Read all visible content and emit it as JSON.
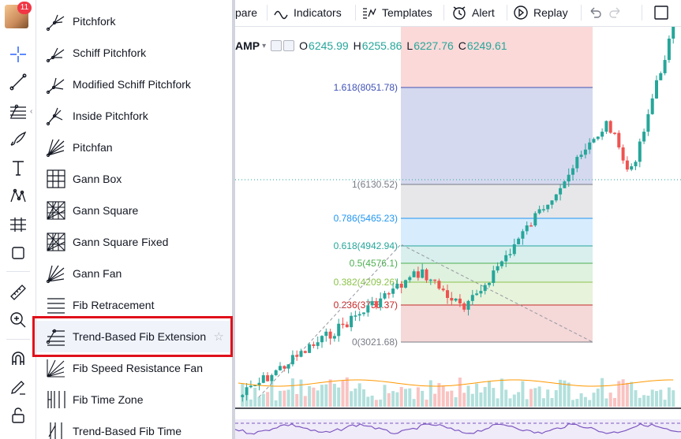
{
  "user": {
    "notification_count": "11"
  },
  "toolbar": {
    "icons": [
      "crosshair-icon",
      "trend-line-icon",
      "fib-tools-icon",
      "brush-icon",
      "text-icon",
      "pattern-icon",
      "prediction-icon",
      "shapes-icon",
      "ruler-icon",
      "zoom-in-icon",
      "magnet-icon",
      "lock-drawings-icon",
      "lock-icon"
    ]
  },
  "topbar": {
    "compare": "pare",
    "indicators": "Indicators",
    "templates": "Templates",
    "alert": "Alert",
    "replay": "Replay"
  },
  "menu": {
    "items": [
      {
        "label": "Pitchfork",
        "icon": "pitchfork-icon"
      },
      {
        "label": "Schiff Pitchfork",
        "icon": "schiff-pitchfork-icon"
      },
      {
        "label": "Modified Schiff Pitchfork",
        "icon": "modified-schiff-pitchfork-icon"
      },
      {
        "label": "Inside Pitchfork",
        "icon": "inside-pitchfork-icon"
      },
      {
        "label": "Pitchfan",
        "icon": "pitchfan-icon"
      },
      {
        "label": "Gann Box",
        "icon": "gann-box-icon"
      },
      {
        "label": "Gann Square",
        "icon": "gann-square-icon"
      },
      {
        "label": "Gann Square Fixed",
        "icon": "gann-square-fixed-icon"
      },
      {
        "label": "Gann Fan",
        "icon": "gann-fan-icon"
      },
      {
        "label": "Fib Retracement",
        "icon": "fib-retracement-icon"
      },
      {
        "label": "Trend-Based Fib Extension",
        "icon": "trend-based-fib-extension-icon",
        "selected": true
      },
      {
        "label": "Fib Speed Resistance Fan",
        "icon": "fib-speed-resistance-fan-icon"
      },
      {
        "label": "Fib Time Zone",
        "icon": "fib-time-zone-icon"
      },
      {
        "label": "Trend-Based Fib Time",
        "icon": "trend-based-fib-time-icon"
      }
    ]
  },
  "chart": {
    "symbol_suffix": "AMP",
    "ohlc": {
      "o_label": "O",
      "o": "6245.99",
      "h_label": "H",
      "h": "6255.86",
      "l_label": "L",
      "l": "6227.76",
      "c_label": "C",
      "c": "6249.61"
    },
    "fib_levels": [
      {
        "label": "1.618(8051.78)",
        "color": "#3f51b5"
      },
      {
        "label": "1(6130.52)",
        "color": "#787b86"
      },
      {
        "label": "0.786(5465.23)",
        "color": "#2196f3"
      },
      {
        "label": "0.618(4942.94)",
        "color": "#26a69a"
      },
      {
        "label": "0.5(4576.1)",
        "color": "#4caf50"
      },
      {
        "label": "0.382(4209.26)",
        "color": "#8bc34a"
      },
      {
        "label": "0.236(3755.37)",
        "color": "#c62828"
      },
      {
        "label": "0(3021.68)",
        "color": "#787b86"
      }
    ],
    "colors": {
      "up": "#26a69a",
      "down": "#ef5350"
    }
  }
}
